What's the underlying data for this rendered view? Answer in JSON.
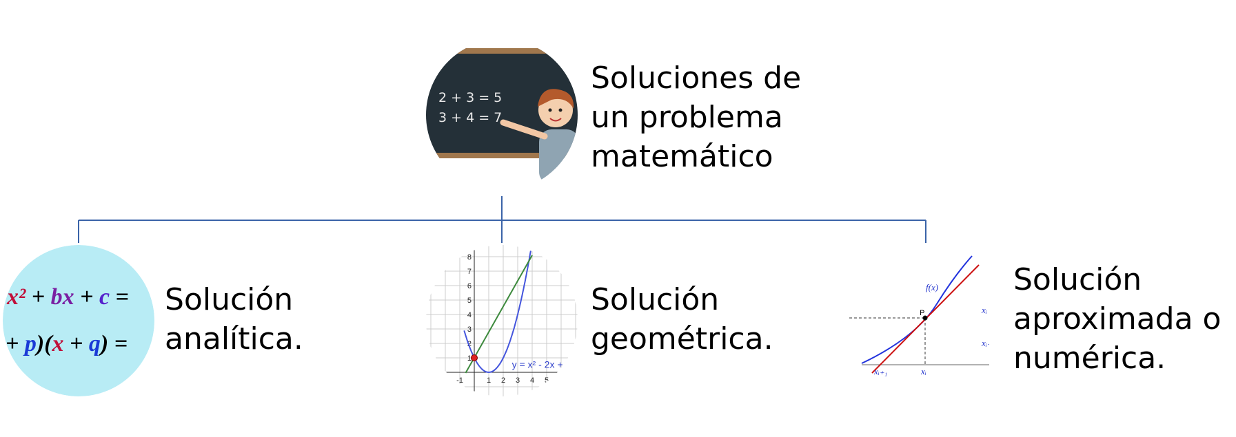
{
  "root": {
    "lines": [
      "Soluciones de",
      "un problema",
      "matemático"
    ],
    "board": [
      "2 + 3 = 5",
      "3 + 4 = 7"
    ]
  },
  "branches": [
    {
      "lines": [
        "Solución",
        "analítica."
      ],
      "formula_1": [
        "x²",
        " + ",
        "bx",
        " + ",
        "c",
        " ="
      ],
      "formula_2": [
        "+ ",
        "p",
        ")(",
        "x",
        " + ",
        "q",
        ") ="
      ]
    },
    {
      "lines": [
        "Solución",
        "geométrica."
      ],
      "graph_label": "y = x² - 2x +",
      "y_ticks": [
        "1",
        "2",
        "3",
        "4",
        "5",
        "6",
        "7",
        "8"
      ],
      "x_ticks": [
        "-1",
        "1",
        "2",
        "3",
        "4",
        "5"
      ]
    },
    {
      "lines": [
        "Solución",
        "aproximada o",
        "numérica."
      ],
      "labels": [
        "f(x)",
        "P",
        "xᵢ",
        "xᵢ₊₁",
        "xᵢ −",
        "xᵢ₊"
      ]
    }
  ]
}
